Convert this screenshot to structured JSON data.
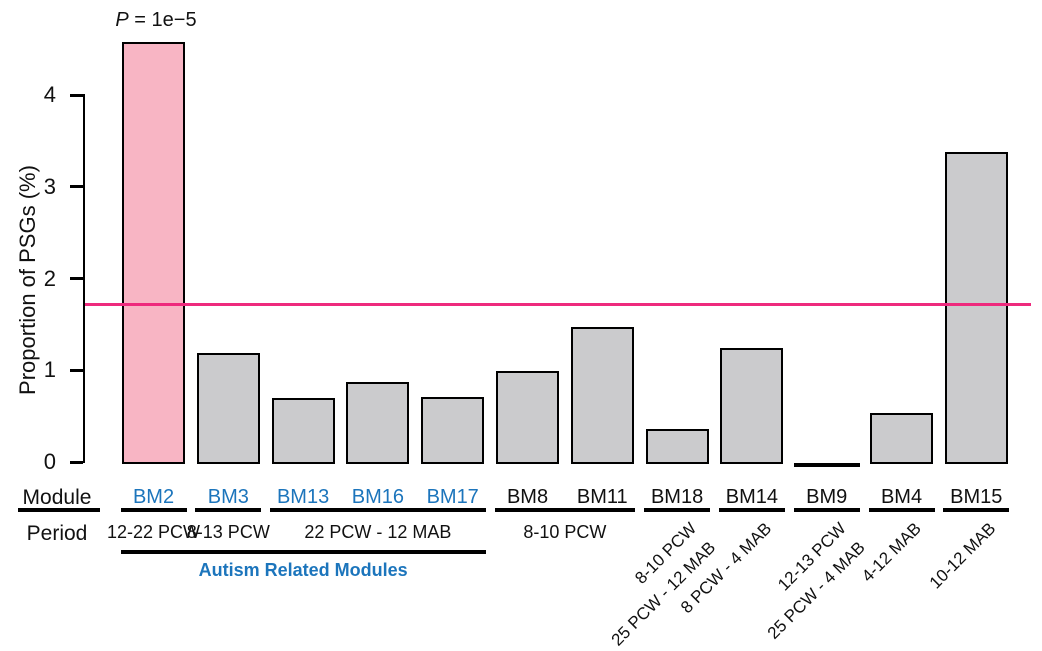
{
  "chart_data": {
    "type": "bar",
    "title": "",
    "xlabel": "",
    "ylabel": "Proportion of PSGs (%)",
    "ylim": [
      0,
      4.6
    ],
    "yticks": [
      0,
      1,
      2,
      3,
      4
    ],
    "grid": false,
    "legend": "none",
    "p_annotation": {
      "italic": "P",
      "rest": " = 1e−5",
      "applies_to": "BM2"
    },
    "threshold_line": {
      "value": 1.72,
      "color": "#EE2A7D"
    },
    "colors": {
      "bar_fill_default": "#CBCBCD",
      "bar_fill_highlight": "#F8B5C4",
      "bar_border": "#000000",
      "module_blue": "#1C75BC",
      "text_black": "#111111",
      "threshold": "#EE2A7D"
    },
    "row_labels": {
      "module": "Module",
      "period": "Period"
    },
    "modules": [
      {
        "name": "BM2",
        "value": 4.55,
        "highlight": true,
        "autism": true
      },
      {
        "name": "BM3",
        "value": 1.16,
        "highlight": false,
        "autism": true
      },
      {
        "name": "BM13",
        "value": 0.67,
        "highlight": false,
        "autism": true
      },
      {
        "name": "BM16",
        "value": 0.84,
        "highlight": false,
        "autism": true
      },
      {
        "name": "BM17",
        "value": 0.68,
        "highlight": false,
        "autism": true
      },
      {
        "name": "BM8",
        "value": 0.97,
        "highlight": false,
        "autism": false
      },
      {
        "name": "BM11",
        "value": 1.44,
        "highlight": false,
        "autism": false
      },
      {
        "name": "BM18",
        "value": 0.33,
        "highlight": false,
        "autism": false
      },
      {
        "name": "BM14",
        "value": 1.22,
        "highlight": false,
        "autism": false
      },
      {
        "name": "BM9",
        "value": 0.02,
        "highlight": false,
        "autism": false
      },
      {
        "name": "BM4",
        "value": 0.51,
        "highlight": false,
        "autism": false
      },
      {
        "name": "BM15",
        "value": 3.35,
        "highlight": false,
        "autism": false
      }
    ],
    "period_groups": [
      {
        "modules": [
          "BM2"
        ],
        "rotated": false,
        "lines": [
          "12-22 PCW"
        ]
      },
      {
        "modules": [
          "BM3"
        ],
        "rotated": false,
        "lines": [
          "8-13 PCW"
        ]
      },
      {
        "modules": [
          "BM13",
          "BM16",
          "BM17"
        ],
        "rotated": false,
        "lines": [
          "22 PCW - 12 MAB"
        ]
      },
      {
        "modules": [
          "BM8",
          "BM11"
        ],
        "rotated": false,
        "lines": [
          "8-10 PCW"
        ]
      },
      {
        "modules": [
          "BM18"
        ],
        "rotated": true,
        "lines": [
          "8-10 PCW",
          "25 PCW - 12 MAB"
        ]
      },
      {
        "modules": [
          "BM14"
        ],
        "rotated": true,
        "lines": [
          "8 PCW - 4 MAB"
        ]
      },
      {
        "modules": [
          "BM9"
        ],
        "rotated": true,
        "lines": [
          "12-13 PCW",
          "25 PCW - 4 MAB"
        ]
      },
      {
        "modules": [
          "BM4"
        ],
        "rotated": true,
        "lines": [
          "4-12 MAB"
        ]
      },
      {
        "modules": [
          "BM15"
        ],
        "rotated": true,
        "lines": [
          "10-12 MAB"
        ]
      }
    ],
    "autism_group": {
      "label": "Autism Related Modules",
      "modules": [
        "BM2",
        "BM3",
        "BM13",
        "BM16",
        "BM17"
      ]
    }
  }
}
